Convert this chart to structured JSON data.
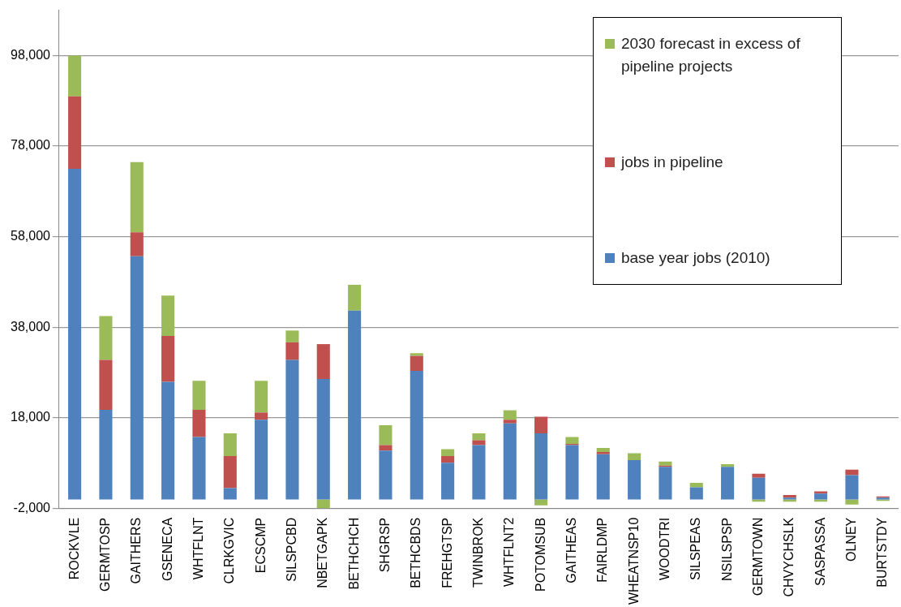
{
  "chart_data": {
    "type": "bar",
    "stacked": true,
    "legend": "top right",
    "grid": "y",
    "categories": [
      "ROCKVLE",
      "GERMTOSP",
      "GAITHERS",
      "GSENECA",
      "WHTFLNT",
      "CLRKGVIC",
      "ECSCMP",
      "SILSPCBD",
      "NBETGAPK",
      "BETHCHCH",
      "SHGRSP",
      "BETHCBDS",
      "FREHGTSP",
      "TWINBROK",
      "WHTFLNT2",
      "POTOMSUB",
      "GAITHEAS",
      "FAIRLDMP",
      "WHEATNSP10",
      "WOODTRI",
      "SILSPEAS",
      "NSILSPSP",
      "GERMTOWN",
      "CHVYCHSLK",
      "SASPASSA",
      "OLNEY",
      "BURTSTDY"
    ],
    "series": [
      {
        "name": "base year jobs (2010)",
        "color": "#4f81bd",
        "values": [
          73000,
          19800,
          53700,
          26000,
          13800,
          2500,
          17600,
          30800,
          26600,
          41700,
          10800,
          28400,
          8100,
          12000,
          16800,
          14600,
          12000,
          10000,
          8700,
          7200,
          2700,
          7200,
          4800,
          400,
          1300,
          5400,
          400
        ]
      },
      {
        "name": "jobs in pipeline",
        "color": "#c0504d",
        "values": [
          16000,
          11000,
          5300,
          10100,
          6000,
          7100,
          1600,
          3900,
          7700,
          0,
          1200,
          3300,
          1500,
          1100,
          800,
          3700,
          300,
          500,
          0,
          300,
          0,
          0,
          900,
          600,
          500,
          1200,
          300
        ]
      },
      {
        "name": "2030 forecast in excess of pipeline projects",
        "color": "#9bbb59",
        "values": [
          9000,
          9700,
          15500,
          8900,
          6400,
          5000,
          7000,
          2600,
          -1900,
          5700,
          4400,
          600,
          1500,
          1500,
          2100,
          -1300,
          1500,
          900,
          1500,
          900,
          1000,
          600,
          -500,
          -500,
          -500,
          -1100,
          -300
        ]
      }
    ],
    "ylim": [
      -2000,
      108000
    ],
    "yticks": [
      {
        "value": -2000,
        "label": "-2,000"
      },
      {
        "value": 18000,
        "label": "18,000"
      },
      {
        "value": 38000,
        "label": "38,000"
      },
      {
        "value": 58000,
        "label": "58,000"
      },
      {
        "value": 78000,
        "label": "78,000"
      },
      {
        "value": 98000,
        "label": "98,000"
      }
    ]
  }
}
